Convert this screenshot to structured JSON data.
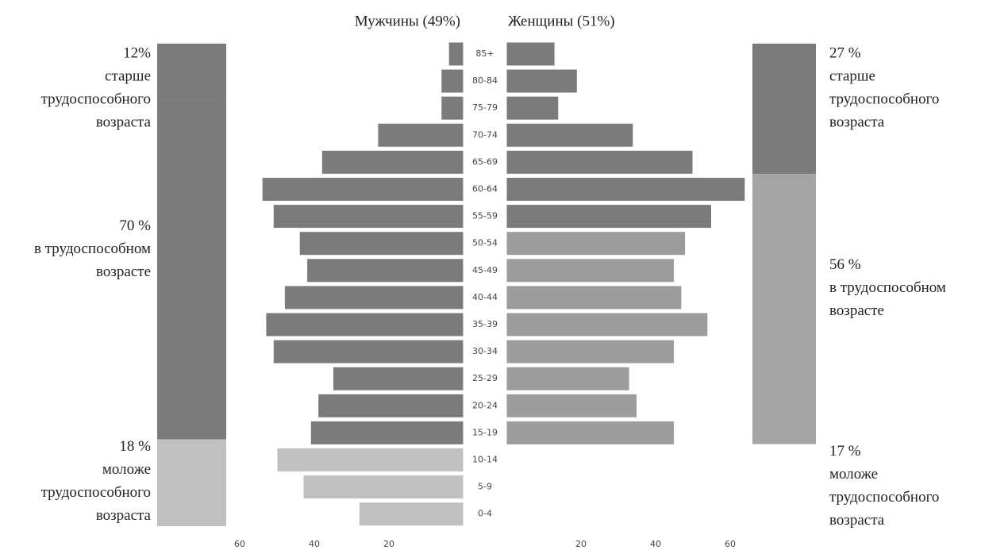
{
  "chart_data": {
    "type": "pyramid",
    "categories": [
      "85+",
      "80-84",
      "75-79",
      "70-74",
      "65-69",
      "60-64",
      "55-59",
      "50-54",
      "45-49",
      "40-44",
      "35-39",
      "30-34",
      "25-29",
      "20-24",
      "15-19",
      "10-14",
      "5-9",
      "0-4"
    ],
    "series": [
      {
        "name": "Мужчины (49%)",
        "values": [
          4,
          6,
          6,
          23,
          38,
          54,
          51,
          44,
          42,
          48,
          53,
          51,
          35,
          39,
          41,
          50,
          43,
          28
        ],
        "colors": [
          "#7b7b7b",
          "#7b7b7b",
          "#7b7b7b",
          "#7b7b7b",
          "#7b7b7b",
          "#7b7b7b",
          "#7b7b7b",
          "#7b7b7b",
          "#7b7b7b",
          "#7b7b7b",
          "#7b7b7b",
          "#7b7b7b",
          "#7b7b7b",
          "#7b7b7b",
          "#7b7b7b",
          "#c0c0c0",
          "#c0c0c0",
          "#c0c0c0"
        ]
      },
      {
        "name": "Женщины (51%)",
        "values": [
          13,
          19,
          14,
          34,
          50,
          64,
          55,
          48,
          45,
          47,
          54,
          45,
          33,
          35,
          45,
          null,
          null,
          null
        ],
        "colors": [
          "#7b7b7b",
          "#7b7b7b",
          "#7b7b7b",
          "#7b7b7b",
          "#7b7b7b",
          "#7b7b7b",
          "#7b7b7b",
          "#9c9c9c",
          "#9c9c9c",
          "#9c9c9c",
          "#9c9c9c",
          "#9c9c9c",
          "#9c9c9c",
          "#9c9c9c",
          "#9c9c9c",
          "#c0c0c0",
          "#c0c0c0",
          "#c0c0c0"
        ]
      }
    ],
    "xlim": [
      0,
      65
    ],
    "xticks": [
      60,
      40,
      20
    ],
    "summary": [
      {
        "segments": [
          {
            "label": "12%",
            "text": [
              "старше",
              "трудоспособного",
              "возраста"
            ],
            "value": 12,
            "color": "#7b7b7b"
          },
          {
            "label": "70 %",
            "text": [
              "в трудоспособном",
              "возрасте"
            ],
            "value": 70,
            "color": "#7b7b7b"
          },
          {
            "label": "18 %",
            "text": [
              "моложе",
              "трудоспособного",
              "возраста"
            ],
            "value": 18,
            "color": "#c0c0c0"
          }
        ]
      },
      {
        "segments": [
          {
            "label": "27 %",
            "text": [
              "старше",
              "трудоспособного",
              "возраста"
            ],
            "value": 27,
            "color": "#7b7b7b"
          },
          {
            "label": "56 %",
            "text": [
              "в трудоспособном",
              "возрасте"
            ],
            "value": 56,
            "color": "#a4a4a4"
          },
          {
            "label": "17 %",
            "text": [
              "моложе",
              "трудоспособного",
              "возраста"
            ],
            "value": 17,
            "color": "#ffffff"
          }
        ]
      }
    ]
  }
}
